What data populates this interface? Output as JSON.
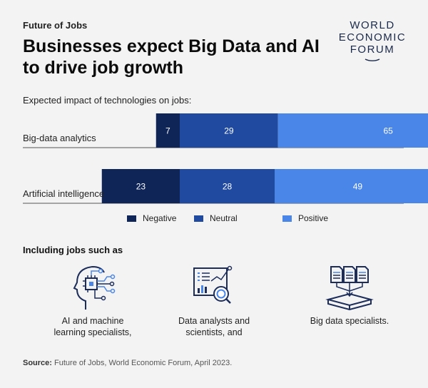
{
  "header": {
    "kicker": "Future of Jobs",
    "title": "Businesses expect Big Data and AI to drive job growth",
    "logo_lines": [
      "WORLD",
      "ECONOMIC",
      "FORUM"
    ]
  },
  "colors": {
    "negative": "#0f2557",
    "neutral": "#1f4aa0",
    "positive": "#4a86e8",
    "logo": "#1b2a4a",
    "icon": "#1c2d5a",
    "icon_accent": "#4a86e8"
  },
  "chart_data": {
    "type": "bar",
    "orientation": "horizontal",
    "stacked": "diverging",
    "subtitle": "Expected impact of technologies on jobs:",
    "categories": [
      "Big-data analytics",
      "Artificial intelligence"
    ],
    "series": [
      {
        "name": "Negative",
        "values": [
          7,
          23
        ]
      },
      {
        "name": "Neutral",
        "values": [
          29,
          28
        ]
      },
      {
        "name": "Positive",
        "values": [
          65,
          49
        ]
      }
    ],
    "legend_position": "bottom",
    "grid": false
  },
  "jobs": {
    "heading": "Including jobs such as",
    "items": [
      {
        "label_lines": [
          "AI and machine",
          "learning specialists,"
        ],
        "icon": "ai-head-icon"
      },
      {
        "label_lines": [
          "Data analysts and",
          "scientists, and"
        ],
        "icon": "data-analysis-icon"
      },
      {
        "label_lines": [
          "Big data specialists."
        ],
        "icon": "big-data-icon"
      }
    ]
  },
  "source": {
    "label": "Source:",
    "text": "Future of Jobs, World Economic Forum, April 2023."
  }
}
